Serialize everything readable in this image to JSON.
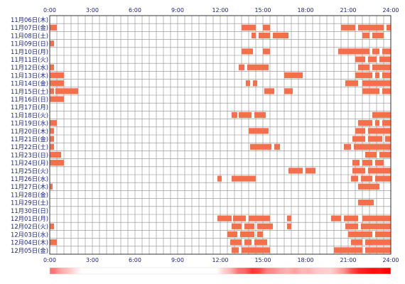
{
  "chart_data": {
    "type": "heatmap",
    "title": "",
    "x_axis": {
      "ticks": [
        "0:00",
        "3:00",
        "6:00",
        "9:00",
        "12:00",
        "15:00",
        "18:00",
        "21:00",
        "24:00"
      ],
      "range_hours": [
        0,
        24
      ],
      "cell_minutes": 30
    },
    "colors": {
      "activity_cell": "#f4704c",
      "grid_line": "#8c8c8c",
      "frame": "#333333",
      "tick_text": "#1a237e",
      "day_text": "#1a237e"
    },
    "days": [
      {
        "label": "11月06日(木)",
        "activity": []
      },
      {
        "label": "11月07日(金)",
        "activity": [
          [
            0,
            0.5
          ],
          [
            13.5,
            14.5
          ],
          [
            15,
            15.5
          ],
          [
            20.5,
            21.5
          ],
          [
            21.7,
            23.5
          ],
          [
            23.7,
            24
          ]
        ]
      },
      {
        "label": "11月08日(土)",
        "activity": [
          [
            14.2,
            14.5
          ],
          [
            14.7,
            15.5
          ],
          [
            15.7,
            16.8
          ],
          [
            22,
            22.5
          ],
          [
            22.7,
            23.5
          ]
        ]
      },
      {
        "label": "11月09日(日)",
        "activity": [
          [
            0,
            0.3
          ]
        ]
      },
      {
        "label": "11月10日(月)",
        "activity": [
          [
            13.5,
            14.3
          ],
          [
            15,
            15.5
          ],
          [
            20.3,
            22.5
          ],
          [
            22.7,
            23.2
          ],
          [
            23.4,
            24
          ]
        ]
      },
      {
        "label": "11月11日(火)",
        "activity": [
          [
            21.5,
            22.2
          ],
          [
            22.4,
            23
          ],
          [
            23.2,
            24
          ]
        ]
      },
      {
        "label": "11月12日(水)",
        "activity": [
          [
            0,
            0.3
          ],
          [
            13.3,
            13.7
          ],
          [
            13.9,
            15.4
          ],
          [
            21.7,
            22.5
          ],
          [
            22.7,
            24
          ]
        ]
      },
      {
        "label": "11月13日(木)",
        "activity": [
          [
            0,
            1
          ],
          [
            16.5,
            17.8
          ],
          [
            21.5,
            22.7
          ],
          [
            22.9,
            23.2
          ],
          [
            23.4,
            24
          ]
        ]
      },
      {
        "label": "11月14日(金)",
        "activity": [
          [
            0,
            1
          ],
          [
            13.8,
            14.1
          ],
          [
            14.3,
            14.6
          ],
          [
            20.8,
            21.7
          ],
          [
            22,
            24
          ]
        ]
      },
      {
        "label": "11月15日(土)",
        "activity": [
          [
            0,
            0.3
          ],
          [
            0.4,
            2
          ],
          [
            15.1,
            15.8
          ],
          [
            16.5,
            17.1
          ],
          [
            22,
            23.2
          ],
          [
            23.4,
            24
          ]
        ]
      },
      {
        "label": "11月16日(日)",
        "activity": [
          [
            0,
            1
          ]
        ]
      },
      {
        "label": "11月17日(月)",
        "activity": []
      },
      {
        "label": "11月18日(火)",
        "activity": [
          [
            12.8,
            13.2
          ],
          [
            13.3,
            14.2
          ],
          [
            14.4,
            15.2
          ],
          [
            22.7,
            24
          ]
        ]
      },
      {
        "label": "11月19日(水)",
        "activity": [
          [
            0,
            0.5
          ],
          [
            21.7,
            22.7
          ],
          [
            22.9,
            23.2
          ],
          [
            23.4,
            24
          ]
        ]
      },
      {
        "label": "11月20日(木)",
        "activity": [
          [
            0,
            0.3
          ],
          [
            14,
            15.4
          ],
          [
            21.5,
            22.2
          ],
          [
            22.4,
            24
          ]
        ]
      },
      {
        "label": "11月21日(金)",
        "activity": [
          [
            0,
            0.3
          ],
          [
            21.3,
            22.2
          ],
          [
            22.4,
            23.4
          ],
          [
            23.6,
            24
          ]
        ]
      },
      {
        "label": "11月22日(土)",
        "activity": [
          [
            0,
            0.3
          ],
          [
            14.1,
            15.6
          ],
          [
            15.8,
            16.2
          ],
          [
            20.7,
            21.2
          ],
          [
            21.4,
            24
          ]
        ]
      },
      {
        "label": "11月23日(日)",
        "activity": [
          [
            0,
            0.8
          ],
          [
            22.2,
            23
          ],
          [
            23.2,
            24
          ]
        ]
      },
      {
        "label": "11月24日(月)",
        "activity": [
          [
            0,
            1
          ],
          [
            21.3,
            21.8
          ],
          [
            22,
            22.7
          ],
          [
            22.9,
            23.5
          ]
        ]
      },
      {
        "label": "11月25日(火)",
        "activity": [
          [
            16.8,
            17.8
          ],
          [
            18,
            18.7
          ],
          [
            21.3,
            22.2
          ],
          [
            22.4,
            24
          ]
        ]
      },
      {
        "label": "11月26日(水)",
        "activity": [
          [
            11.8,
            12.1
          ],
          [
            12.8,
            14.5
          ],
          [
            21.2,
            21.7
          ],
          [
            21.9,
            22.7
          ],
          [
            22.9,
            24
          ]
        ]
      },
      {
        "label": "11月27日(木)",
        "activity": [
          [
            0,
            0.2
          ],
          [
            21.7,
            23.2
          ]
        ]
      },
      {
        "label": "11月28日(金)",
        "activity": []
      },
      {
        "label": "11月29日(土)",
        "activity": [
          [
            21.7,
            22.8
          ]
        ]
      },
      {
        "label": "11月30日(日)",
        "activity": []
      },
      {
        "label": "12月01日(月)",
        "activity": [
          [
            11.8,
            12.8
          ],
          [
            12.9,
            13.8
          ],
          [
            14,
            15.5
          ],
          [
            16.7,
            17
          ],
          [
            19.8,
            20.5
          ],
          [
            20.7,
            21.7
          ],
          [
            22,
            24
          ]
        ]
      },
      {
        "label": "12月02日(火)",
        "activity": [
          [
            0,
            0.3
          ],
          [
            12.8,
            13.5
          ],
          [
            13.7,
            14.4
          ],
          [
            14.6,
            15.7
          ],
          [
            16.7,
            17
          ],
          [
            20.8,
            21.7
          ],
          [
            21.9,
            24
          ]
        ]
      },
      {
        "label": "12月03日(水)",
        "activity": [
          [
            12.5,
            13.2
          ],
          [
            13.4,
            14.4
          ],
          [
            14.6,
            15
          ],
          [
            21,
            22.7
          ],
          [
            22.9,
            24
          ]
        ]
      },
      {
        "label": "12月04日(木)",
        "activity": [
          [
            0,
            0.5
          ],
          [
            12.7,
            13.5
          ],
          [
            13.7,
            14.2
          ],
          [
            14.4,
            15.3
          ],
          [
            21.2,
            22
          ],
          [
            22.2,
            24
          ]
        ]
      },
      {
        "label": "12月05日(金)",
        "activity": [
          [
            12.8,
            13.3
          ],
          [
            13.5,
            15.5
          ],
          [
            20,
            22
          ],
          [
            22.2,
            24
          ]
        ]
      }
    ],
    "summary_bar": {
      "description_levels": "per 30-minute slot intensity 0..1",
      "values": [
        0.55,
        0.35,
        0.25,
        0.12,
        0,
        0,
        0,
        0,
        0,
        0,
        0,
        0,
        0,
        0,
        0,
        0,
        0,
        0,
        0,
        0,
        0,
        0,
        0,
        0,
        0.18,
        0.3,
        0.55,
        0.6,
        0.8,
        0.72,
        0.5,
        0.45,
        0.35,
        0.3,
        0.38,
        0.28,
        0.3,
        0.22,
        0.2,
        0.18,
        0.3,
        0.45,
        0.7,
        0.85,
        0.9,
        0.95,
        0.92,
        1.0
      ]
    }
  }
}
